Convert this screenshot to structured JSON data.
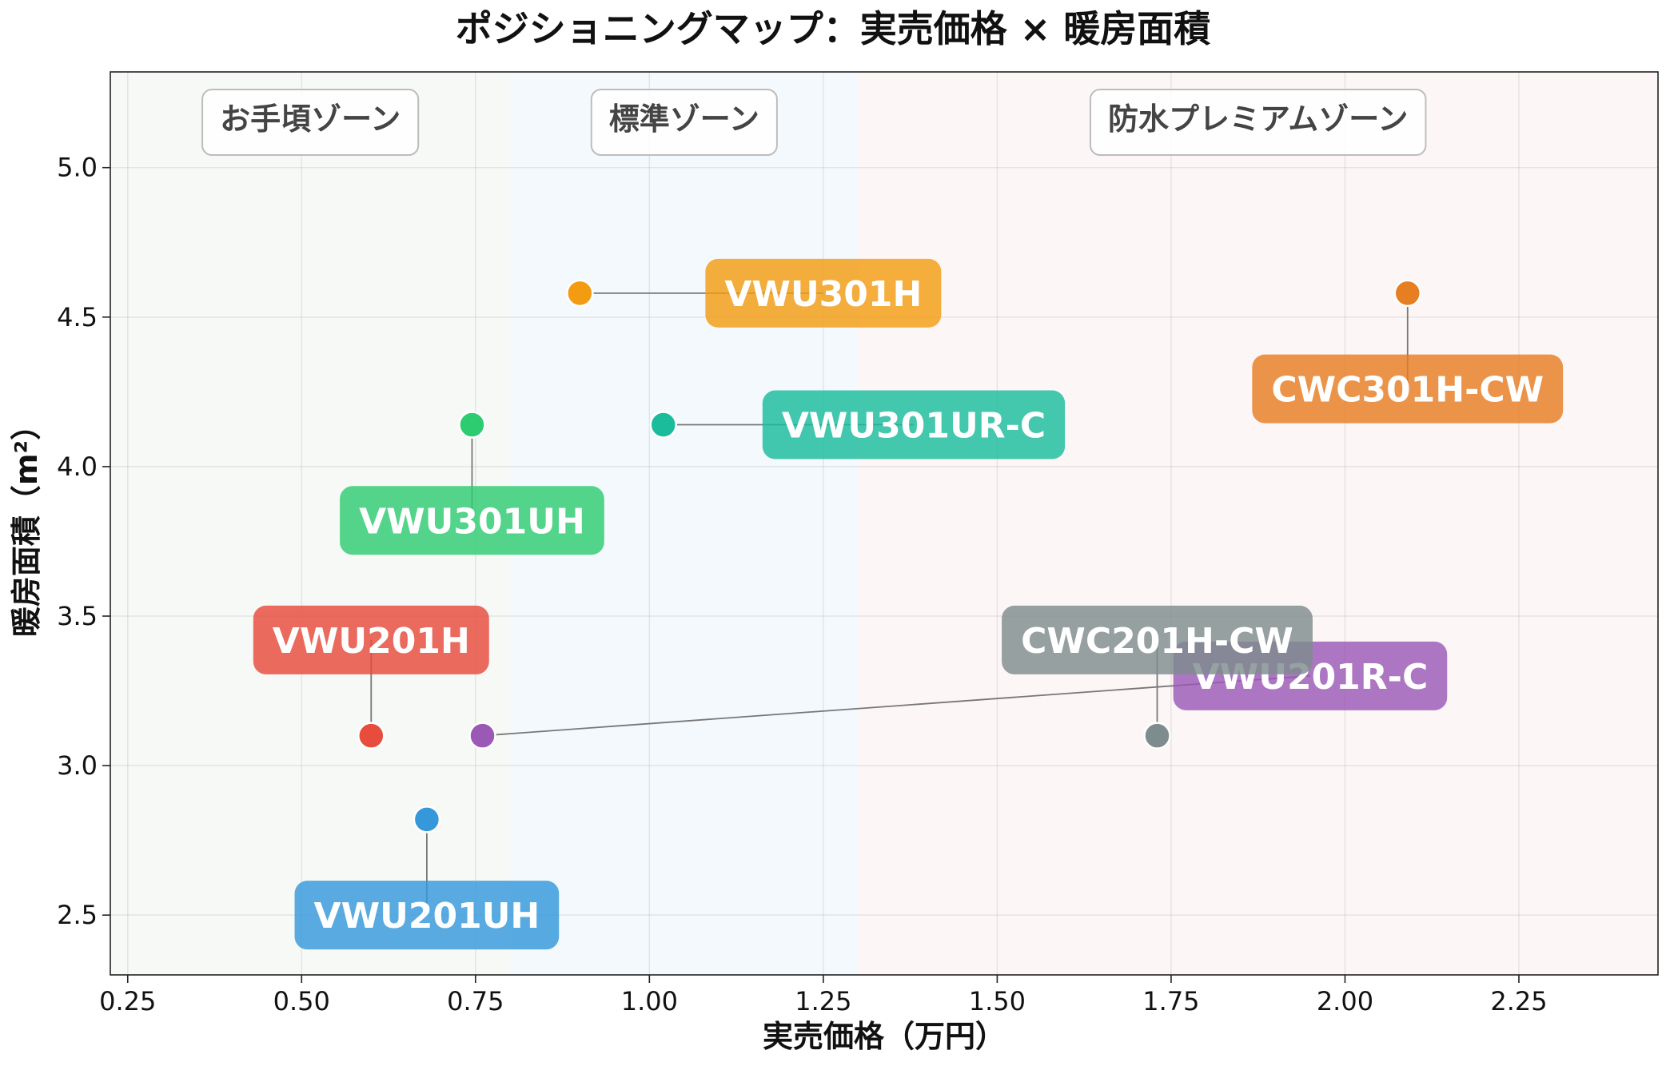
{
  "chart_data": {
    "type": "scatter",
    "title": "ポジショニングマップ：実売価格 × 暖房面積",
    "xlabel": "実売価格（万円）",
    "ylabel": "暖房面積（m²）",
    "xlim": [
      0.225,
      2.45
    ],
    "ylim": [
      2.3,
      5.32
    ],
    "xticks": [
      0.25,
      0.5,
      0.75,
      1.0,
      1.25,
      1.5,
      1.75,
      2.0,
      2.25
    ],
    "xtick_labels": [
      "0.25",
      "0.50",
      "0.75",
      "1.00",
      "1.25",
      "1.50",
      "1.75",
      "2.00",
      "2.25"
    ],
    "yticks": [
      2.5,
      3.0,
      3.5,
      4.0,
      4.5,
      5.0
    ],
    "ytick_labels": [
      "2.5",
      "3.0",
      "3.5",
      "4.0",
      "4.5",
      "5.0"
    ],
    "grid": true,
    "zones": [
      {
        "label": "お手頃ゾーン",
        "x_range": [
          0.225,
          0.8
        ],
        "color": "#f7f9f6"
      },
      {
        "label": "標準ゾーン",
        "x_range": [
          0.8,
          1.3
        ],
        "color": "#f4f9fd"
      },
      {
        "label": "防水プレミアムゾーン",
        "x_range": [
          1.3,
          2.45
        ],
        "color": "#fdf6f6"
      }
    ],
    "points": [
      {
        "label": "VWU201UH",
        "x": 0.68,
        "y": 2.82,
        "color": "#3498db",
        "label_x": 0.68,
        "label_y": 2.5
      },
      {
        "label": "VWU201H",
        "x": 0.6,
        "y": 3.1,
        "color": "#e74c3c",
        "label_x": 0.6,
        "label_y": 3.42
      },
      {
        "label": "VWU201R-C",
        "x": 0.76,
        "y": 3.1,
        "color": "#9b59b6",
        "label_x": 1.95,
        "label_y": 3.3
      },
      {
        "label": "CWC201H-CW",
        "x": 1.73,
        "y": 3.1,
        "color": "#7f8c8d",
        "label_x": 1.73,
        "label_y": 3.42
      },
      {
        "label": "VWU301UH",
        "x": 0.745,
        "y": 4.14,
        "color": "#2ecc71",
        "label_x": 0.745,
        "label_y": 3.82
      },
      {
        "label": "VWU301UR-C",
        "x": 1.02,
        "y": 4.14,
        "color": "#1abc9c",
        "label_x": 1.38,
        "label_y": 4.14
      },
      {
        "label": "VWU301H",
        "x": 0.9,
        "y": 4.58,
        "color": "#f39c12",
        "label_x": 1.25,
        "label_y": 4.58
      },
      {
        "label": "CWC301H-CW",
        "x": 2.09,
        "y": 4.58,
        "color": "#e67e22",
        "label_x": 2.09,
        "label_y": 4.26
      }
    ]
  }
}
